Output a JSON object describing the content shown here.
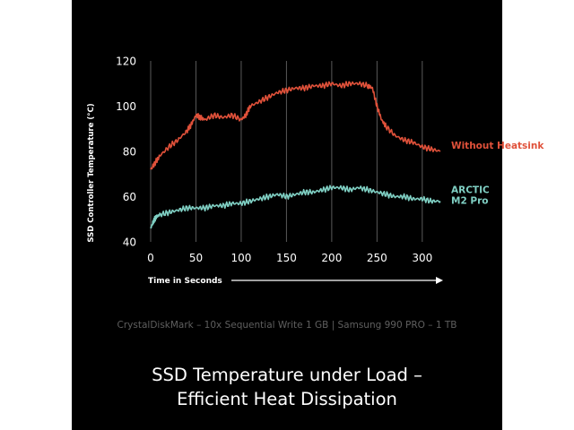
{
  "colors": {
    "background": "#000000",
    "grid": "#5a5a5a",
    "axis_text": "#ffffff",
    "without_heatsink": "#e0513a",
    "arctic": "#7fcfc3"
  },
  "footnote": "CrystalDiskMark – 10x Sequential Write 1 GB | Samsung 990 PRO – 1 TB",
  "headline": {
    "line1": "SSD Temperature under Load –",
    "line2": "Efficient Heat Dissipation"
  },
  "chart_data": {
    "type": "line",
    "title": "",
    "xlabel": "Time in Seconds",
    "ylabel": "SSD Controller Temperature (°C)",
    "xlim": [
      0,
      320
    ],
    "ylim": [
      40,
      120
    ],
    "x_ticks": [
      0,
      50,
      100,
      150,
      200,
      250,
      300
    ],
    "y_ticks": [
      40,
      60,
      80,
      100,
      120
    ],
    "grid": "vertical",
    "legend": "right, at line ends",
    "series": [
      {
        "name": "Without Heatsink",
        "color": "#e0513a",
        "x": [
          0,
          5,
          10,
          20,
          30,
          40,
          45,
          50,
          55,
          60,
          70,
          80,
          90,
          100,
          105,
          110,
          120,
          130,
          140,
          150,
          160,
          170,
          180,
          190,
          200,
          210,
          220,
          230,
          240,
          245,
          250,
          255,
          260,
          270,
          280,
          290,
          300,
          310,
          320
        ],
        "y": [
          72,
          75,
          78,
          82,
          85,
          89,
          92,
          96,
          95,
          94,
          96,
          95,
          96,
          94,
          96,
          100,
          102,
          104,
          106,
          107,
          108,
          108,
          109,
          109,
          110,
          109,
          110,
          110,
          109,
          108,
          100,
          94,
          91,
          87,
          85,
          84,
          82,
          81,
          80
        ]
      },
      {
        "name": "ARCTIC\nM2 Pro",
        "color": "#7fcfc3",
        "x": [
          0,
          3,
          6,
          10,
          20,
          30,
          40,
          50,
          60,
          70,
          80,
          90,
          100,
          110,
          120,
          130,
          140,
          150,
          160,
          170,
          180,
          190,
          200,
          210,
          220,
          230,
          240,
          250,
          260,
          270,
          280,
          290,
          300,
          310,
          320
        ],
        "y": [
          46,
          49,
          51,
          52,
          53,
          54,
          55,
          55,
          55,
          56,
          56,
          57,
          57,
          58,
          59,
          60,
          61,
          60,
          61,
          62,
          62,
          63,
          64,
          64,
          63,
          64,
          63,
          62,
          61,
          60,
          60,
          59,
          59,
          58,
          58
        ]
      }
    ]
  }
}
